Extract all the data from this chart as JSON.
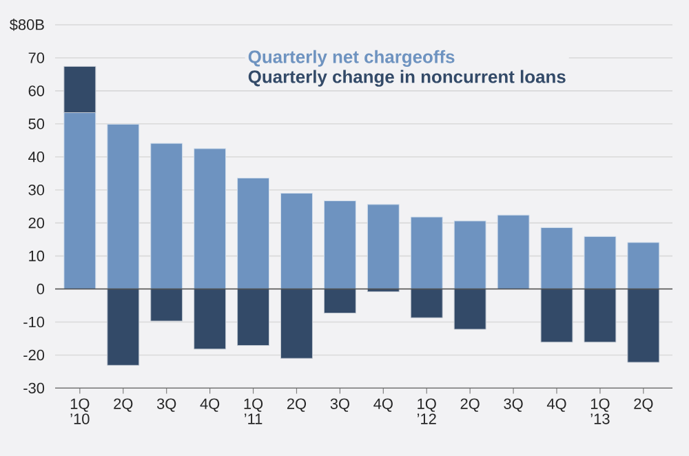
{
  "chart_data": {
    "type": "bar",
    "stacked": true,
    "categories": [
      "1Q ’10",
      "2Q",
      "3Q",
      "4Q",
      "1Q ’11",
      "2Q",
      "3Q",
      "4Q",
      "1Q ’12",
      "2Q",
      "3Q",
      "4Q",
      "1Q ’13",
      "2Q"
    ],
    "series": [
      {
        "name": "Quarterly net chargeoffs",
        "color": "#6e93c0",
        "values": [
          53.4,
          49.9,
          44.1,
          42.5,
          33.6,
          29.0,
          26.7,
          25.6,
          21.8,
          20.6,
          22.4,
          18.6,
          15.9,
          14.1
        ]
      },
      {
        "name": "Quarterly change in noncurrent loans",
        "color": "#334a68",
        "values": [
          14.0,
          -23.1,
          -9.7,
          -18.2,
          -17.1,
          -21.0,
          -7.3,
          -0.8,
          -8.7,
          -12.2,
          null,
          -16.1,
          -16.1,
          -22.2
        ]
      }
    ],
    "ylim": [
      -30,
      80
    ],
    "yticks": [
      -30,
      -20,
      -10,
      0,
      10,
      20,
      30,
      40,
      50,
      60,
      70,
      {
        "value": 80,
        "label": "$80B"
      }
    ],
    "grid": "y",
    "legend": "top"
  }
}
